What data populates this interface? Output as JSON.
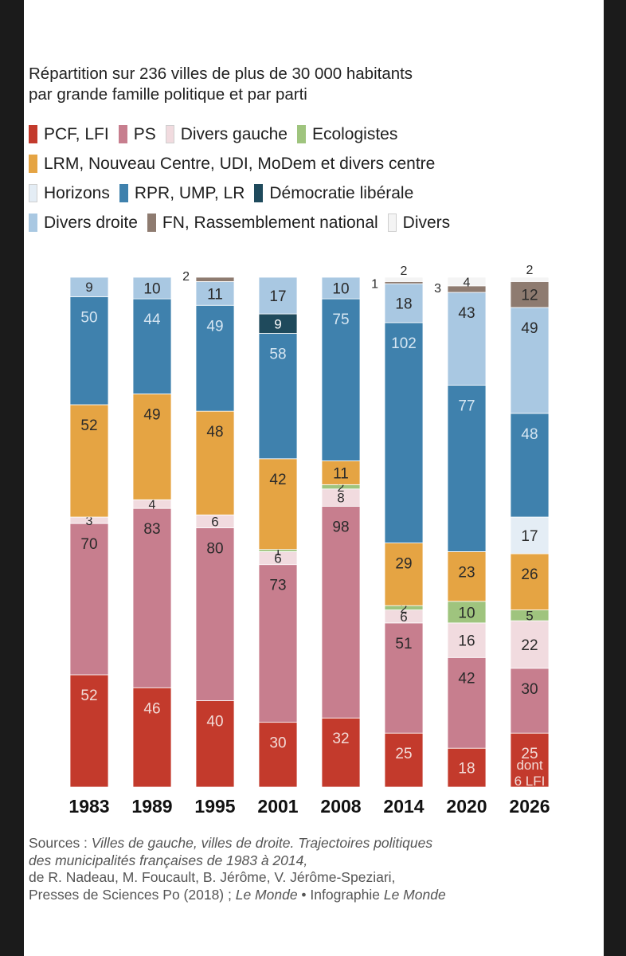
{
  "subtitle_line1": "Répartition sur 236 villes de plus de 30 000 habitants",
  "subtitle_line2": "par grande famille politique et par parti",
  "legend": [
    [
      {
        "label": "PCF, LFI",
        "color": "#c33a2c"
      },
      {
        "label": "PS",
        "color": "#c77e8e"
      },
      {
        "label": "Divers gauche",
        "color": "#f1dbdf"
      },
      {
        "label": "Ecologistes",
        "color": "#9fc47e"
      }
    ],
    [
      {
        "label": "LRM, Nouveau Centre, UDI, MoDem et divers centre",
        "color": "#e5a443"
      }
    ],
    [
      {
        "label": "Horizons",
        "color": "#e4edf5"
      },
      {
        "label": "RPR, UMP, LR",
        "color": "#3f81ad"
      },
      {
        "label": "Démocratie libérale",
        "color": "#1f4a5c"
      }
    ],
    [
      {
        "label": "Divers droite",
        "color": "#a9c8e2"
      },
      {
        "label": "FN, Rassemblement national",
        "color": "#8e7b70"
      },
      {
        "label": "Divers",
        "color": "#f4f4f4"
      }
    ]
  ],
  "chart_data": {
    "type": "bar",
    "stacked": true,
    "title": "Répartition sur 236 villes de plus de 30 000 habitants par grande famille politique et par parti",
    "categories": [
      "1983",
      "1989",
      "1995",
      "2001",
      "2008",
      "2014",
      "2020",
      "2026"
    ],
    "series": [
      {
        "name": "PCF, LFI",
        "color": "#c33a2c",
        "values": [
          52,
          46,
          40,
          30,
          32,
          25,
          18,
          25
        ]
      },
      {
        "name": "PS",
        "color": "#c77e8e",
        "values": [
          70,
          83,
          80,
          73,
          98,
          51,
          42,
          30
        ]
      },
      {
        "name": "Divers gauche",
        "color": "#f1dbdf",
        "values": [
          3,
          4,
          6,
          6,
          8,
          6,
          16,
          22
        ]
      },
      {
        "name": "Ecologistes",
        "color": "#9fc47e",
        "values": [
          0,
          0,
          0,
          1,
          2,
          2,
          10,
          5
        ]
      },
      {
        "name": "LRM, Nouveau Centre, UDI, MoDem et divers centre",
        "color": "#e5a443",
        "values": [
          52,
          49,
          48,
          42,
          11,
          29,
          23,
          26
        ]
      },
      {
        "name": "Horizons",
        "color": "#e4edf5",
        "values": [
          0,
          0,
          0,
          0,
          0,
          0,
          0,
          17
        ]
      },
      {
        "name": "RPR, UMP, LR",
        "color": "#3f81ad",
        "values": [
          50,
          44,
          49,
          58,
          75,
          102,
          77,
          48
        ]
      },
      {
        "name": "Démocratie libérale",
        "color": "#1f4a5c",
        "values": [
          0,
          0,
          0,
          9,
          0,
          0,
          0,
          0
        ]
      },
      {
        "name": "Divers droite",
        "color": "#a9c8e2",
        "values": [
          9,
          10,
          11,
          17,
          10,
          18,
          43,
          49
        ]
      },
      {
        "name": "FN, Rassemblement national",
        "color": "#8e7b70",
        "values": [
          0,
          0,
          2,
          0,
          0,
          1,
          3,
          12
        ]
      },
      {
        "name": "Divers",
        "color": "#f4f4f4",
        "values": [
          0,
          0,
          0,
          0,
          0,
          2,
          4,
          2
        ]
      }
    ],
    "annotations": [
      {
        "category": "2026",
        "series": "PCF, LFI",
        "text": "dont 6 LFI"
      }
    ],
    "total": 236,
    "xlabel": "",
    "ylabel": "",
    "ylim": [
      0,
      236
    ],
    "grid": false
  },
  "sources": {
    "prefix": "Sources : ",
    "italic1": "Villes de gauche, villes de droite. Trajectoires politiques",
    "italic2": "des municipalités françaises de 1983 à 2014,",
    "line3": "de R. Nadeau, M. Foucault, B. Jérôme, V. Jérôme-Speziari,",
    "line4a": "Presses de Sciences Po (2018) ; ",
    "line4b": "Le Monde",
    "line4c": " • Infographie ",
    "line4d": "Le Monde"
  }
}
